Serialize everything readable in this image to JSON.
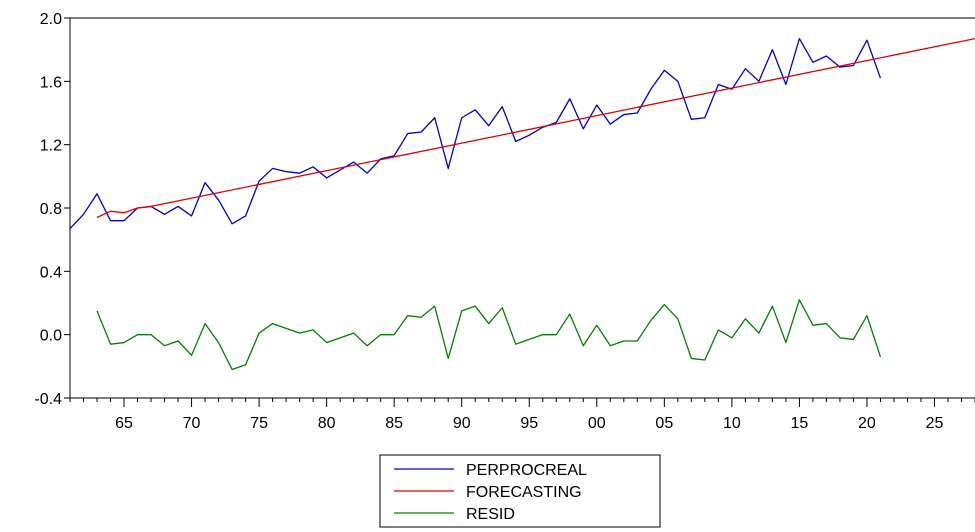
{
  "chart_data": {
    "type": "line",
    "title": "",
    "xlabel": "",
    "ylabel": "",
    "xlim": [
      1961,
      2028
    ],
    "ylim": [
      -0.4,
      2.0
    ],
    "yticks": [
      "2.0",
      "1.6",
      "1.2",
      "0.8",
      "0.4",
      "0.0",
      "-0.4"
    ],
    "ytick_values": [
      2.0,
      1.6,
      1.2,
      0.8,
      0.4,
      0.0,
      -0.4
    ],
    "xticks": [
      "65",
      "70",
      "75",
      "80",
      "85",
      "90",
      "95",
      "00",
      "05",
      "10",
      "15",
      "20",
      "25"
    ],
    "xtick_values": [
      1965,
      1970,
      1975,
      1980,
      1985,
      1990,
      1995,
      2000,
      2005,
      2010,
      2015,
      2020,
      2025
    ],
    "grid": false,
    "legend_position": "bottom-center",
    "series": [
      {
        "name": "PERPROCREAL",
        "color": "#0000cc",
        "x": [
          1961,
          1962,
          1963,
          1964,
          1965,
          1966,
          1967,
          1968,
          1969,
          1970,
          1971,
          1972,
          1973,
          1974,
          1975,
          1976,
          1977,
          1978,
          1979,
          1980,
          1981,
          1982,
          1983,
          1984,
          1985,
          1986,
          1987,
          1988,
          1989,
          1990,
          1991,
          1992,
          1993,
          1994,
          1995,
          1996,
          1997,
          1998,
          1999,
          2000,
          2001,
          2002,
          2003,
          2004,
          2005,
          2006,
          2007,
          2008,
          2009,
          2010,
          2011,
          2012,
          2013,
          2014,
          2015,
          2016,
          2017,
          2018,
          2019,
          2020,
          2021
        ],
        "values": [
          0.67,
          0.76,
          0.89,
          0.72,
          0.72,
          0.8,
          0.81,
          0.76,
          0.81,
          0.75,
          0.96,
          0.85,
          0.7,
          0.75,
          0.97,
          1.05,
          1.03,
          1.02,
          1.06,
          0.99,
          1.04,
          1.09,
          1.02,
          1.11,
          1.13,
          1.27,
          1.28,
          1.37,
          1.05,
          1.37,
          1.42,
          1.32,
          1.44,
          1.22,
          1.26,
          1.31,
          1.34,
          1.49,
          1.3,
          1.45,
          1.33,
          1.39,
          1.4,
          1.55,
          1.67,
          1.6,
          1.36,
          1.37,
          1.58,
          1.55,
          1.68,
          1.6,
          1.8,
          1.58,
          1.87,
          1.72,
          1.76,
          1.69,
          1.7,
          1.86,
          1.62
        ]
      },
      {
        "name": "FORECASTING",
        "color": "#dd0000",
        "x": [
          1963,
          1964,
          1965,
          1966,
          1967,
          2028
        ],
        "values": [
          0.74,
          0.78,
          0.77,
          0.8,
          0.81,
          1.87
        ]
      },
      {
        "name": "RESID",
        "color": "#008000",
        "x": [
          1963,
          1964,
          1965,
          1966,
          1967,
          1968,
          1969,
          1970,
          1971,
          1972,
          1973,
          1974,
          1975,
          1976,
          1977,
          1978,
          1979,
          1980,
          1981,
          1982,
          1983,
          1984,
          1985,
          1986,
          1987,
          1988,
          1989,
          1990,
          1991,
          1992,
          1993,
          1994,
          1995,
          1996,
          1997,
          1998,
          1999,
          2000,
          2001,
          2002,
          2003,
          2004,
          2005,
          2006,
          2007,
          2008,
          2009,
          2010,
          2011,
          2012,
          2013,
          2014,
          2015,
          2016,
          2017,
          2018,
          2019,
          2020,
          2021
        ],
        "values": [
          0.15,
          -0.06,
          -0.05,
          0.0,
          0.0,
          -0.07,
          -0.04,
          -0.13,
          0.07,
          -0.05,
          -0.22,
          -0.19,
          0.01,
          0.07,
          0.04,
          0.01,
          0.03,
          -0.05,
          -0.02,
          0.01,
          -0.07,
          0.0,
          0.0,
          0.12,
          0.11,
          0.18,
          -0.15,
          0.15,
          0.18,
          0.07,
          0.17,
          -0.06,
          -0.03,
          0.0,
          0.0,
          0.13,
          -0.07,
          0.06,
          -0.07,
          -0.04,
          -0.04,
          0.09,
          0.19,
          0.1,
          -0.15,
          -0.16,
          0.03,
          -0.02,
          0.1,
          0.01,
          0.18,
          -0.05,
          0.22,
          0.06,
          0.07,
          -0.02,
          -0.03,
          0.12,
          -0.14
        ]
      }
    ]
  }
}
